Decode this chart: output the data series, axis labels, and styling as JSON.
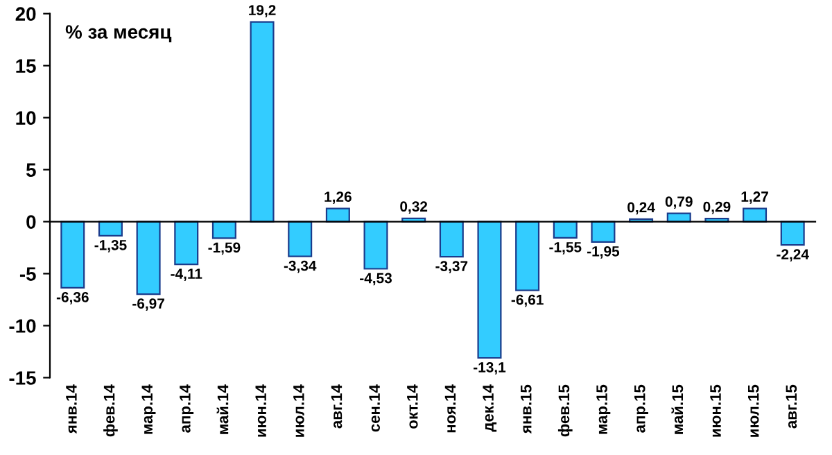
{
  "chart_data": {
    "type": "bar",
    "title": "% за месяц",
    "categories": [
      "янв.14",
      "фев.14",
      "мар.14",
      "апр.14",
      "май.14",
      "июн.14",
      "июл.14",
      "авг.14",
      "сен.14",
      "окт.14",
      "ноя.14",
      "дек.14",
      "янв.15",
      "фев.15",
      "мар.15",
      "апр.15",
      "май.15",
      "июн.15",
      "июл.15",
      "авг.15"
    ],
    "values": [
      -6.36,
      -1.35,
      -6.97,
      -4.11,
      -1.59,
      19.2,
      -3.34,
      1.26,
      -4.53,
      0.32,
      -3.37,
      -13.1,
      -6.61,
      -1.55,
      -1.95,
      0.24,
      0.79,
      0.29,
      1.27,
      -2.24
    ],
    "value_labels": [
      "-6,36",
      "-1,35",
      "-6,97",
      "-4,11",
      "-1,59",
      "19,2",
      "-3,34",
      "1,26",
      "-4,53",
      "0,32",
      "-3,37",
      "-13,1",
      "-6,61",
      "-1,55",
      "-1,95",
      "0,24",
      "0,79",
      "0,29",
      "1,27",
      "-2,24"
    ],
    "color": "#33ccff",
    "ylim": [
      -15,
      20
    ],
    "yticks": [
      -15,
      -10,
      -5,
      0,
      5,
      10,
      15,
      20
    ],
    "legend": false
  }
}
